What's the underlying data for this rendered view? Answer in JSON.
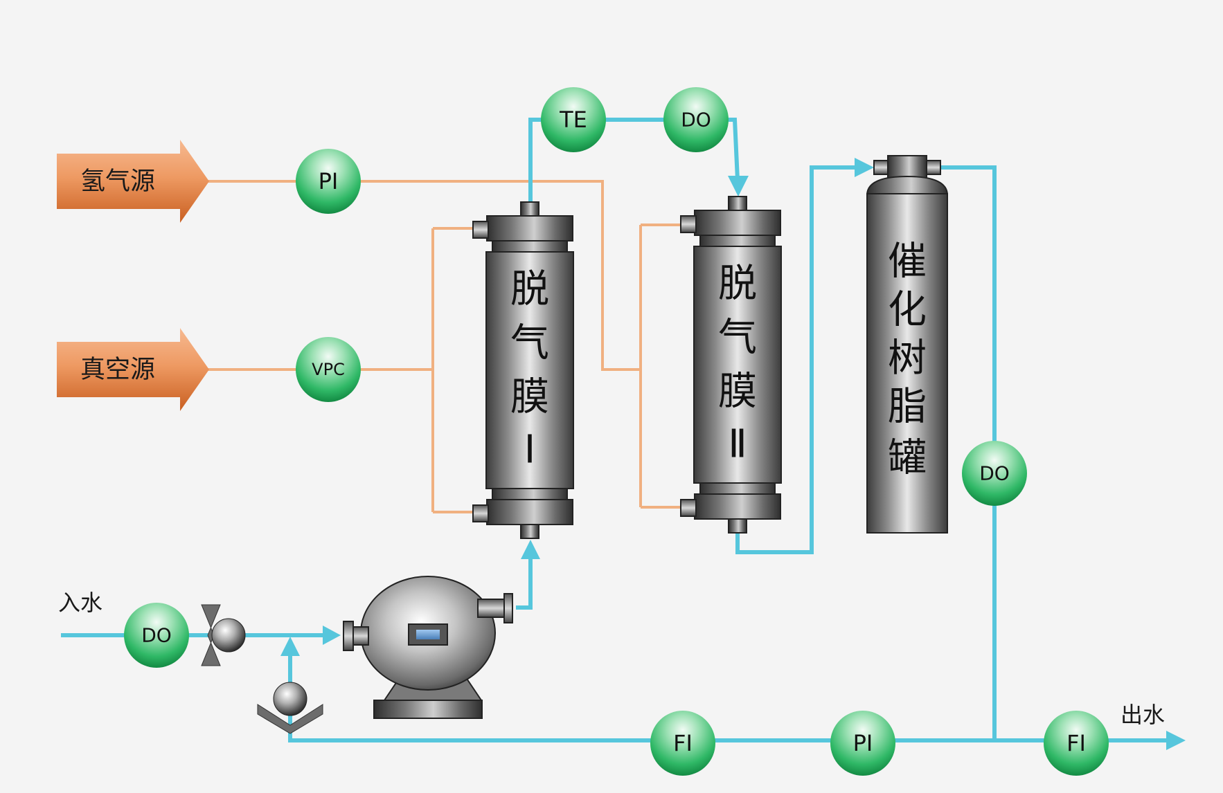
{
  "sources": {
    "hydrogen": "氢气源",
    "vacuum": "真空源"
  },
  "labels": {
    "inlet": "入水",
    "outlet": "出水"
  },
  "membrane1": [
    "脱",
    "气",
    "膜",
    "Ⅰ"
  ],
  "membrane2": [
    "脱",
    "气",
    "膜",
    "Ⅱ"
  ],
  "resin_tank": [
    "催",
    "化",
    "树",
    "脂",
    "罐"
  ],
  "instruments": {
    "pi_hydrogen": "PI",
    "vpc": "VPC",
    "te": "TE",
    "do_top": "DO",
    "do_right": "DO",
    "do_inlet": "DO",
    "fi_bottom": "FI",
    "pi_bottom": "PI",
    "fi_outlet": "FI"
  },
  "colors": {
    "water_line": "#56c6dc",
    "gas_line": "#f0b080",
    "source_arrow": "#e07b3f",
    "instrument": "#22b35c"
  }
}
